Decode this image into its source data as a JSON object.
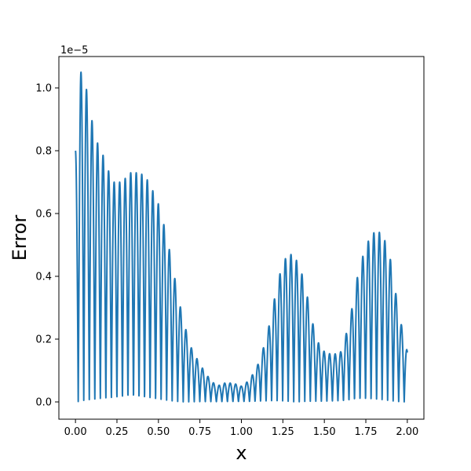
{
  "chart_data": {
    "type": "line",
    "title": "",
    "xlabel": "x",
    "ylabel": "Error",
    "offset_text": "1e−5",
    "xlim": [
      -0.1,
      2.1
    ],
    "ylim": [
      -0.055,
      1.1
    ],
    "y_scale_note": "values in units of 1e-5",
    "xticks": [
      0.0,
      0.25,
      0.5,
      0.75,
      1.0,
      1.25,
      1.5,
      1.75,
      2.0
    ],
    "xtick_labels": [
      "0.00",
      "0.25",
      "0.50",
      "0.75",
      "1.00",
      "1.25",
      "1.50",
      "1.75",
      "2.00"
    ],
    "yticks": [
      0.0,
      0.2,
      0.4,
      0.6,
      0.8,
      1.0
    ],
    "ytick_labels": [
      "0.0",
      "0.2",
      "0.4",
      "0.6",
      "0.8",
      "1.0"
    ],
    "grid": false,
    "legend": "none",
    "line_color": "#1f77b4",
    "series": [
      {
        "oscillation_period": 0.0333,
        "envelope_x": [
          0.0,
          0.01,
          0.03,
          0.05,
          0.08,
          0.12,
          0.18,
          0.22,
          0.28,
          0.33,
          0.38,
          0.42,
          0.46,
          0.5,
          0.54,
          0.58,
          0.62,
          0.66,
          0.7,
          0.75,
          0.8,
          0.85,
          0.9,
          0.95,
          1.0,
          1.05,
          1.1,
          1.15,
          1.2,
          1.25,
          1.3,
          1.35,
          1.4,
          1.45,
          1.5,
          1.55,
          1.6,
          1.65,
          1.7,
          1.75,
          1.8,
          1.85,
          1.9,
          1.95,
          2.0
        ],
        "envelope_peak": [
          0.8,
          0.8,
          1.05,
          1.05,
          0.95,
          0.84,
          0.77,
          0.7,
          0.7,
          0.73,
          0.73,
          0.72,
          0.68,
          0.63,
          0.55,
          0.45,
          0.33,
          0.24,
          0.17,
          0.12,
          0.08,
          0.05,
          0.06,
          0.06,
          0.05,
          0.07,
          0.12,
          0.2,
          0.33,
          0.45,
          0.47,
          0.44,
          0.33,
          0.2,
          0.16,
          0.15,
          0.16,
          0.25,
          0.4,
          0.5,
          0.54,
          0.54,
          0.45,
          0.28,
          0.16
        ]
      }
    ]
  }
}
